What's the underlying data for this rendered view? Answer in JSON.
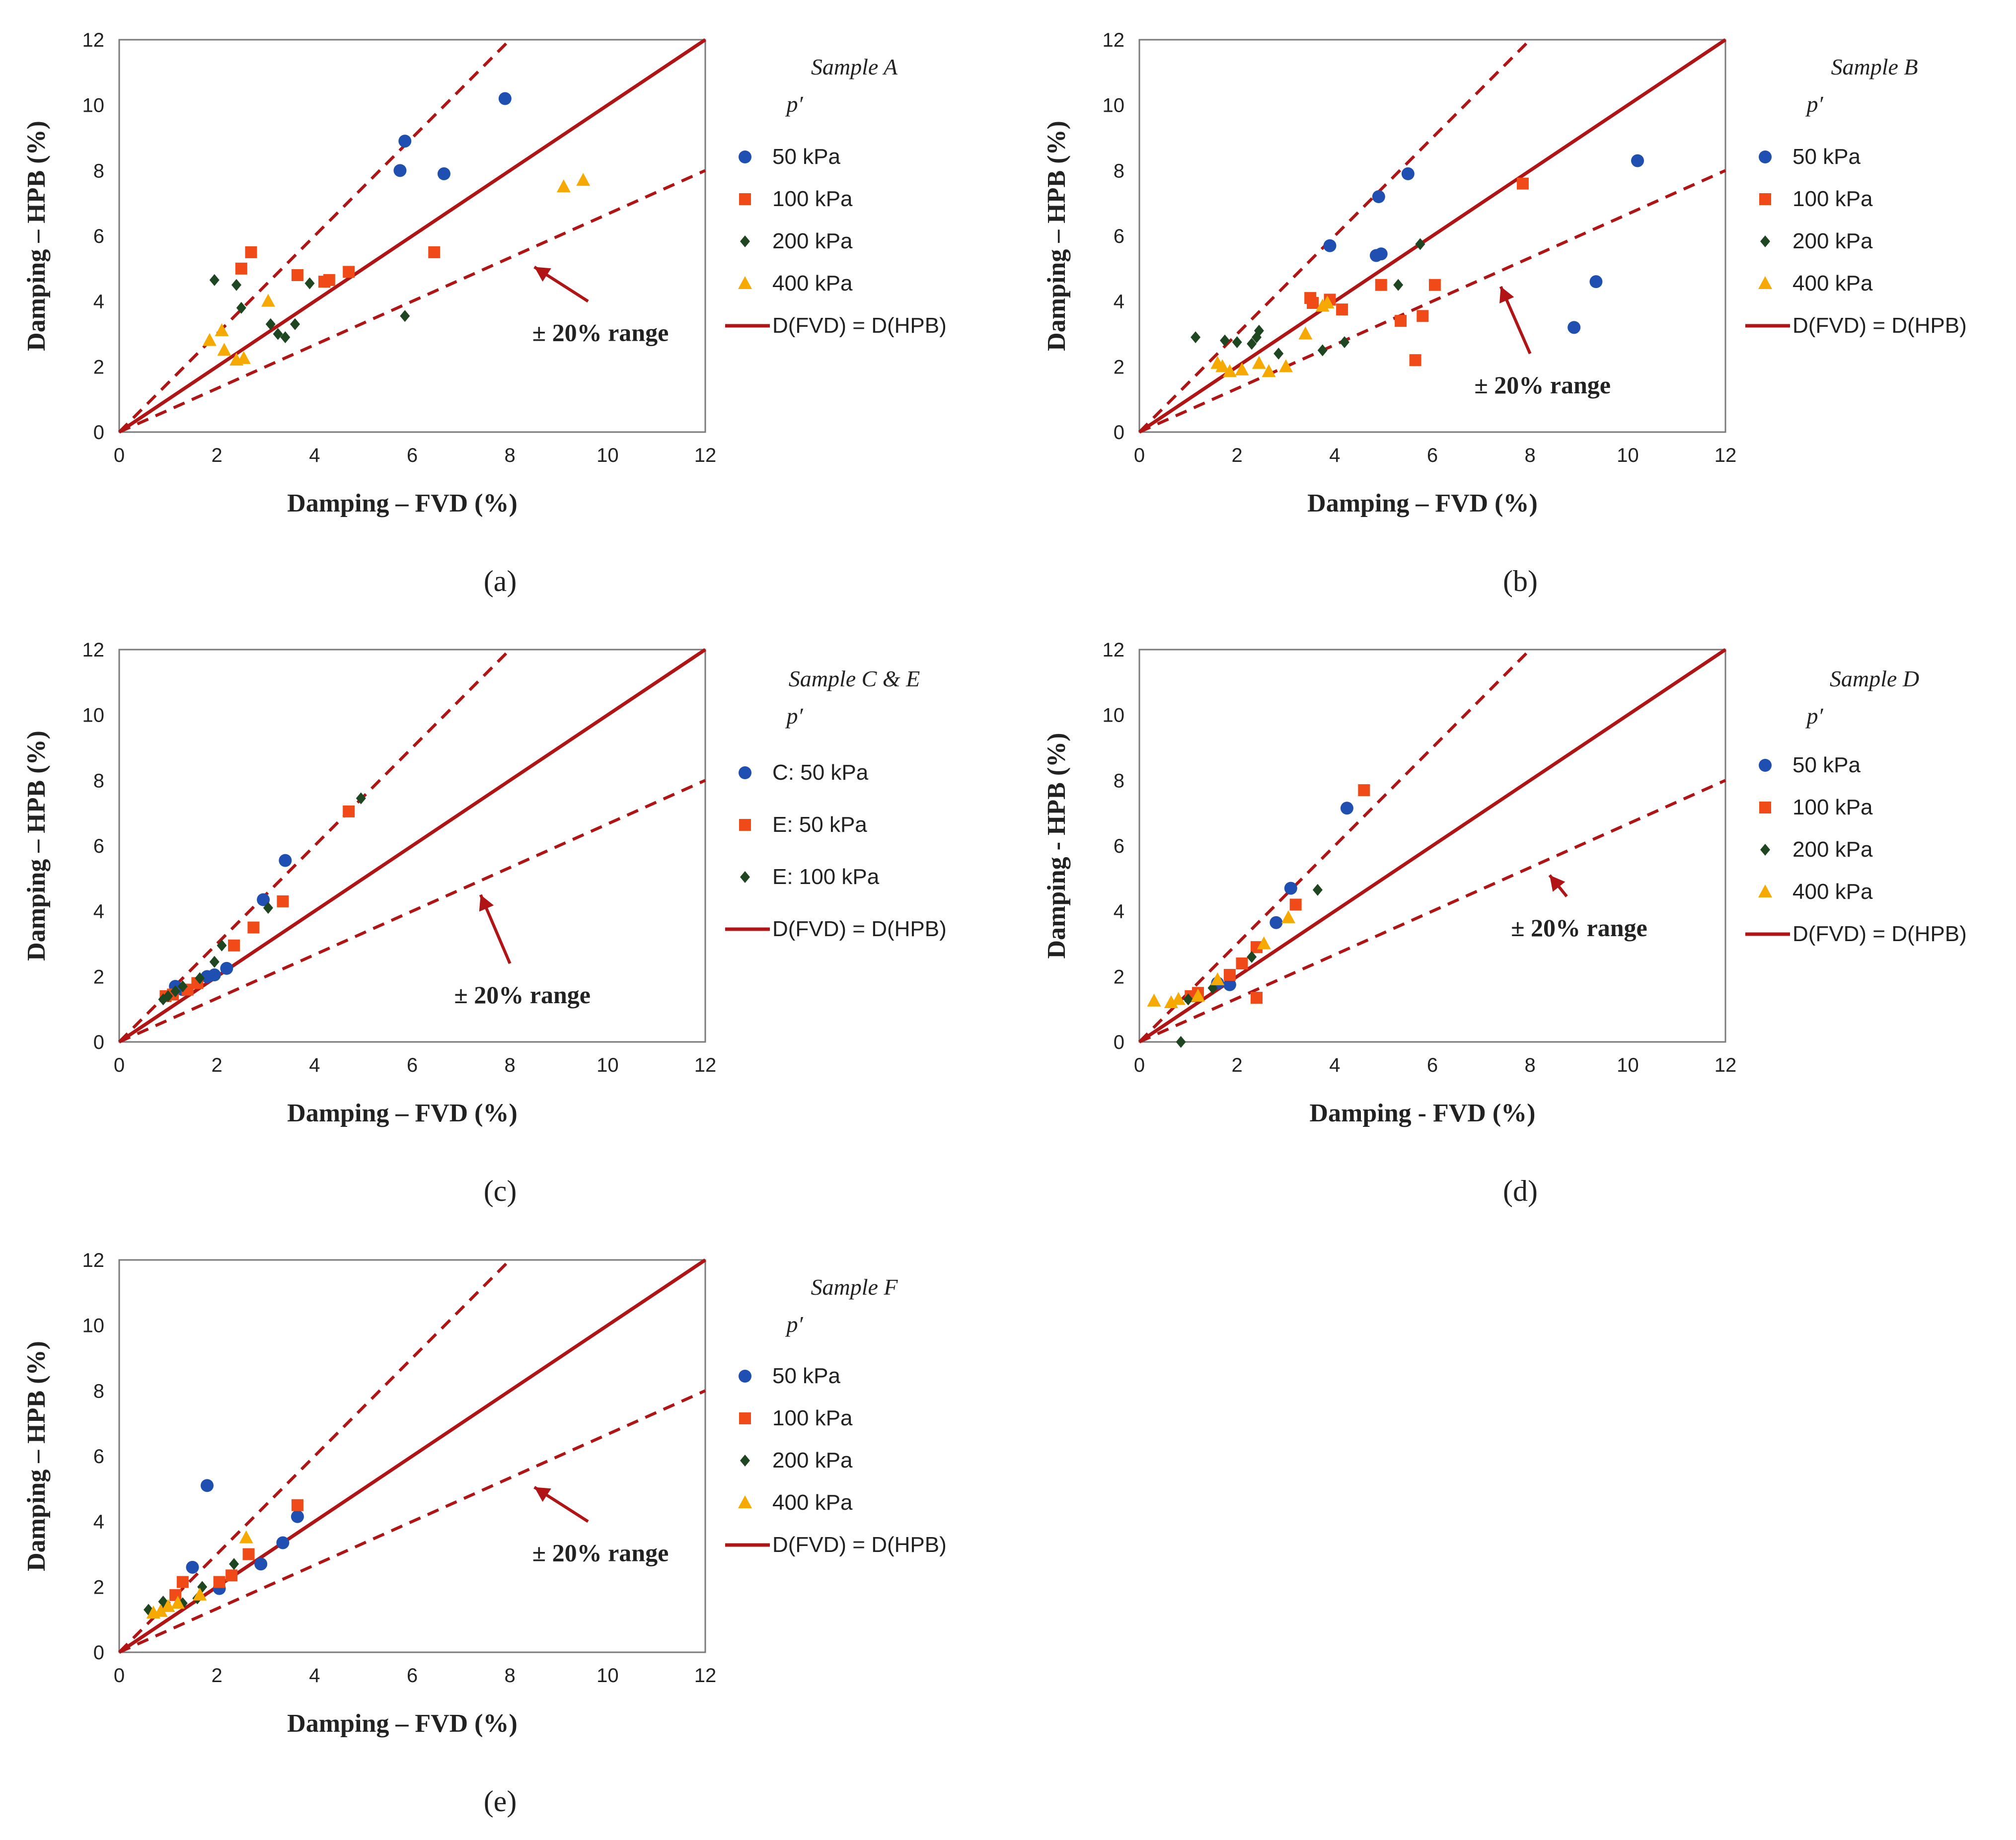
{
  "colors": {
    "blue": "#1F4FB0",
    "red": "#F04A18",
    "green": "#1E4620",
    "orange": "#F6A900",
    "line": "#B01414"
  },
  "chart_data": [
    {
      "type": "scatter",
      "panel_label": "(a)",
      "xlabel": "Damping – FVD (%)",
      "ylabel": "Damping – HPB (%)",
      "xlim": [
        0,
        12
      ],
      "ylim": [
        0,
        12
      ],
      "x_ticks": [
        "0",
        "2",
        "4",
        "6",
        "8",
        "10",
        "12"
      ],
      "y_ticks": [
        "0",
        "2",
        "4",
        "6",
        "8",
        "10",
        "12"
      ],
      "legend_title": "Sample A",
      "legend_subtitle": "p′",
      "annotation": "± 20% range",
      "annotation_arrow": {
        "from": [
          9.6,
          4.0
        ],
        "to": [
          8.5,
          5.05
        ]
      },
      "lines": [
        {
          "name": "D(FVD) = D(HPB)",
          "style": "solid",
          "slope": 1.0
        },
        {
          "name": "+20%",
          "style": "dashed",
          "slope": 1.5
        },
        {
          "name": "-20%",
          "style": "dashed",
          "slope": 0.6667
        }
      ],
      "series": [
        {
          "name": "50 kPa",
          "marker": "circle",
          "color": "blue",
          "points": [
            [
              7.9,
              10.2
            ],
            [
              5.85,
              8.9
            ],
            [
              5.75,
              8.0
            ],
            [
              6.65,
              7.9
            ]
          ]
        },
        {
          "name": "100 kPa",
          "marker": "square",
          "color": "red",
          "points": [
            [
              2.7,
              5.5
            ],
            [
              2.5,
              5.0
            ],
            [
              3.65,
              4.8
            ],
            [
              4.2,
              4.6
            ],
            [
              4.3,
              4.65
            ],
            [
              4.7,
              4.9
            ],
            [
              6.45,
              5.5
            ]
          ]
        },
        {
          "name": "200 kPa",
          "marker": "diamond",
          "color": "green",
          "points": [
            [
              1.95,
              4.65
            ],
            [
              2.4,
              4.5
            ],
            [
              2.5,
              3.8
            ],
            [
              3.1,
              3.3
            ],
            [
              3.25,
              3.0
            ],
            [
              3.4,
              2.9
            ],
            [
              3.6,
              3.3
            ],
            [
              3.9,
              4.55
            ],
            [
              5.85,
              3.55
            ]
          ]
        },
        {
          "name": "400 kPa",
          "marker": "triangle",
          "color": "orange",
          "points": [
            [
              1.85,
              2.8
            ],
            [
              2.1,
              3.1
            ],
            [
              2.15,
              2.5
            ],
            [
              2.4,
              2.2
            ],
            [
              2.55,
              2.25
            ],
            [
              3.05,
              4.0
            ],
            [
              9.1,
              7.5
            ],
            [
              9.5,
              7.7
            ]
          ]
        }
      ],
      "legend_line": "D(FVD) = D(HPB)"
    },
    {
      "type": "scatter",
      "panel_label": "(b)",
      "xlabel": "Damping – FVD (%)",
      "ylabel": "Damping – HPB (%)",
      "xlim": [
        0,
        12
      ],
      "ylim": [
        0,
        12
      ],
      "x_ticks": [
        "0",
        "2",
        "4",
        "6",
        "8",
        "10",
        "12"
      ],
      "y_ticks": [
        "0",
        "2",
        "4",
        "6",
        "8",
        "10",
        "12"
      ],
      "legend_title": "Sample B",
      "legend_subtitle": "p′",
      "annotation": "± 20% range",
      "annotation_arrow": {
        "from": [
          8.0,
          2.4
        ],
        "to": [
          7.4,
          4.45
        ]
      },
      "lines": [
        {
          "name": "D(FVD) = D(HPB)",
          "style": "solid",
          "slope": 1.0
        },
        {
          "name": "+20%",
          "style": "dashed",
          "slope": 1.5
        },
        {
          "name": "-20%",
          "style": "dashed",
          "slope": 0.6667
        }
      ],
      "series": [
        {
          "name": "50 kPa",
          "marker": "circle",
          "color": "blue",
          "points": [
            [
              3.9,
              5.7
            ],
            [
              4.9,
              7.2
            ],
            [
              5.5,
              7.9
            ],
            [
              4.85,
              5.4
            ],
            [
              4.95,
              5.45
            ],
            [
              10.2,
              8.3
            ],
            [
              9.35,
              4.6
            ],
            [
              8.9,
              3.2
            ]
          ]
        },
        {
          "name": "100 kPa",
          "marker": "square",
          "color": "red",
          "points": [
            [
              3.5,
              4.1
            ],
            [
              3.55,
              3.95
            ],
            [
              3.9,
              4.05
            ],
            [
              4.15,
              3.75
            ],
            [
              4.95,
              4.5
            ],
            [
              5.35,
              3.4
            ],
            [
              5.8,
              3.55
            ],
            [
              6.05,
              4.5
            ],
            [
              5.65,
              2.2
            ],
            [
              7.85,
              7.6
            ]
          ]
        },
        {
          "name": "200 kPa",
          "marker": "diamond",
          "color": "green",
          "points": [
            [
              1.15,
              2.9
            ],
            [
              1.75,
              2.8
            ],
            [
              2.0,
              2.75
            ],
            [
              2.3,
              2.7
            ],
            [
              2.4,
              2.9
            ],
            [
              2.45,
              3.1
            ],
            [
              2.85,
              2.4
            ],
            [
              3.75,
              2.5
            ],
            [
              4.2,
              2.75
            ],
            [
              5.3,
              4.5
            ],
            [
              5.75,
              5.75
            ]
          ]
        },
        {
          "name": "400 kPa",
          "marker": "triangle",
          "color": "orange",
          "points": [
            [
              1.6,
              2.1
            ],
            [
              1.7,
              2.0
            ],
            [
              1.85,
              1.85
            ],
            [
              2.1,
              1.9
            ],
            [
              2.45,
              2.1
            ],
            [
              2.65,
              1.85
            ],
            [
              3.0,
              2.0
            ],
            [
              3.4,
              3.0
            ],
            [
              3.75,
              3.85
            ],
            [
              3.85,
              3.95
            ]
          ]
        }
      ],
      "legend_line": "D(FVD) = D(HPB)"
    },
    {
      "type": "scatter",
      "panel_label": "(c)",
      "xlabel": "Damping – FVD (%)",
      "ylabel": "Damping – HPB (%)",
      "xlim": [
        0,
        12
      ],
      "ylim": [
        0,
        12
      ],
      "x_ticks": [
        "0",
        "2",
        "4",
        "6",
        "8",
        "10",
        "12"
      ],
      "y_ticks": [
        "0",
        "2",
        "4",
        "6",
        "8",
        "10",
        "12"
      ],
      "legend_title": "Sample C & E",
      "legend_subtitle": "p′",
      "annotation": "± 20% range",
      "annotation_arrow": {
        "from": [
          8.0,
          2.4
        ],
        "to": [
          7.4,
          4.5
        ]
      },
      "lines": [
        {
          "name": "D(FVD) = D(HPB)",
          "style": "solid",
          "slope": 1.0
        },
        {
          "name": "+20%",
          "style": "dashed",
          "slope": 1.5
        },
        {
          "name": "-20%",
          "style": "dashed",
          "slope": 0.6667
        }
      ],
      "series": [
        {
          "name": "C: 50 kPa",
          "marker": "circle",
          "color": "blue",
          "points": [
            [
              1.15,
              1.7
            ],
            [
              1.3,
              1.6
            ],
            [
              1.8,
              2.0
            ],
            [
              1.95,
              2.05
            ],
            [
              2.2,
              2.25
            ],
            [
              2.95,
              4.35
            ],
            [
              3.4,
              5.55
            ]
          ]
        },
        {
          "name": "E: 50 kPa",
          "marker": "square",
          "color": "red",
          "points": [
            [
              0.95,
              1.4
            ],
            [
              1.1,
              1.45
            ],
            [
              1.4,
              1.6
            ],
            [
              1.6,
              1.8
            ],
            [
              2.35,
              2.95
            ],
            [
              2.75,
              3.5
            ],
            [
              3.35,
              4.3
            ],
            [
              4.7,
              7.05
            ]
          ]
        },
        {
          "name": "E: 100 kPa",
          "marker": "diamond",
          "color": "green",
          "points": [
            [
              0.9,
              1.3
            ],
            [
              1.0,
              1.4
            ],
            [
              1.15,
              1.55
            ],
            [
              1.3,
              1.7
            ],
            [
              1.65,
              1.95
            ],
            [
              1.95,
              2.45
            ],
            [
              2.1,
              2.95
            ],
            [
              3.05,
              4.1
            ],
            [
              4.95,
              7.45
            ]
          ]
        }
      ],
      "legend_line": "D(FVD) = D(HPB)"
    },
    {
      "type": "scatter",
      "panel_label": "(d)",
      "xlabel": "Damping - FVD (%)",
      "ylabel": "Damping - HPB (%)",
      "xlim": [
        0,
        12
      ],
      "ylim": [
        0,
        12
      ],
      "x_ticks": [
        "0",
        "2",
        "4",
        "6",
        "8",
        "10",
        "12"
      ],
      "y_ticks": [
        "0",
        "2",
        "4",
        "6",
        "8",
        "10",
        "12"
      ],
      "legend_title": "Sample D",
      "legend_subtitle": "p′",
      "annotation": "± 20% range",
      "annotation_arrow": {
        "from": [
          8.75,
          4.45
        ],
        "to": [
          8.4,
          5.1
        ]
      },
      "lines": [
        {
          "name": "D(FVD) = D(HPB)",
          "style": "solid",
          "slope": 1.0
        },
        {
          "name": "+20%",
          "style": "dashed",
          "slope": 1.5
        },
        {
          "name": "-20%",
          "style": "dashed",
          "slope": 0.6667
        }
      ],
      "series": [
        {
          "name": "50 kPa",
          "marker": "circle",
          "color": "blue",
          "points": [
            [
              1.6,
              1.8
            ],
            [
              1.85,
              1.75
            ],
            [
              2.8,
              3.65
            ],
            [
              3.1,
              4.7
            ],
            [
              4.25,
              7.15
            ]
          ]
        },
        {
          "name": "100 kPa",
          "marker": "square",
          "color": "red",
          "points": [
            [
              1.05,
              1.4
            ],
            [
              1.2,
              1.5
            ],
            [
              1.85,
              2.05
            ],
            [
              2.1,
              2.4
            ],
            [
              2.4,
              2.9
            ],
            [
              3.2,
              4.2
            ],
            [
              4.6,
              7.7
            ],
            [
              2.4,
              1.35
            ]
          ]
        },
        {
          "name": "200 kPa",
          "marker": "diamond",
          "color": "green",
          "points": [
            [
              0.85,
              0.0
            ],
            [
              1.0,
              1.3
            ],
            [
              1.5,
              1.65
            ],
            [
              2.3,
              2.6
            ],
            [
              3.65,
              4.65
            ]
          ]
        },
        {
          "name": "400 kPa",
          "marker": "triangle",
          "color": "orange",
          "points": [
            [
              0.3,
              1.25
            ],
            [
              0.65,
              1.2
            ],
            [
              0.8,
              1.3
            ],
            [
              1.2,
              1.4
            ],
            [
              1.6,
              1.9
            ],
            [
              3.05,
              3.8
            ],
            [
              2.55,
              3.0
            ]
          ]
        }
      ],
      "legend_line": "D(FVD) = D(HPB)"
    },
    {
      "type": "scatter",
      "panel_label": "(e)",
      "xlabel": "Damping – FVD (%)",
      "ylabel": "Damping – HPB (%)",
      "xlim": [
        0,
        12
      ],
      "ylim": [
        0,
        12
      ],
      "x_ticks": [
        "0",
        "2",
        "4",
        "6",
        "8",
        "10",
        "12"
      ],
      "y_ticks": [
        "0",
        "2",
        "4",
        "6",
        "8",
        "10",
        "12"
      ],
      "legend_title": "Sample F",
      "legend_subtitle": "p′",
      "annotation": "± 20% range",
      "annotation_arrow": {
        "from": [
          9.6,
          4.0
        ],
        "to": [
          8.5,
          5.05
        ]
      },
      "lines": [
        {
          "name": "D(FVD) = D(HPB)",
          "style": "solid",
          "slope": 1.0
        },
        {
          "name": "+20%",
          "style": "dashed",
          "slope": 1.5
        },
        {
          "name": "-20%",
          "style": "dashed",
          "slope": 0.6667
        }
      ],
      "series": [
        {
          "name": "50 kPa",
          "marker": "circle",
          "color": "blue",
          "points": [
            [
              1.8,
              5.1
            ],
            [
              1.5,
              2.6
            ],
            [
              2.05,
              1.95
            ],
            [
              2.9,
              2.7
            ],
            [
              3.35,
              3.35
            ],
            [
              3.65,
              4.15
            ]
          ]
        },
        {
          "name": "100 kPa",
          "marker": "square",
          "color": "red",
          "points": [
            [
              1.15,
              1.75
            ],
            [
              1.3,
              2.15
            ],
            [
              2.05,
              2.15
            ],
            [
              2.3,
              2.35
            ],
            [
              2.65,
              3.0
            ],
            [
              3.65,
              4.5
            ]
          ]
        },
        {
          "name": "200 kPa",
          "marker": "diamond",
          "color": "green",
          "points": [
            [
              0.6,
              1.3
            ],
            [
              0.9,
              1.55
            ],
            [
              1.3,
              1.5
            ],
            [
              1.6,
              1.65
            ],
            [
              1.7,
              2.0
            ],
            [
              2.35,
              2.7
            ]
          ]
        },
        {
          "name": "400 kPa",
          "marker": "triangle",
          "color": "orange",
          "points": [
            [
              0.7,
              1.2
            ],
            [
              0.85,
              1.25
            ],
            [
              1.0,
              1.4
            ],
            [
              1.2,
              1.5
            ],
            [
              1.65,
              1.75
            ],
            [
              2.6,
              3.5
            ]
          ]
        }
      ],
      "legend_line": "D(FVD) = D(HPB)"
    }
  ]
}
